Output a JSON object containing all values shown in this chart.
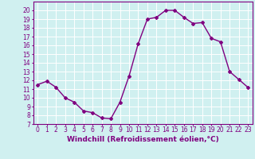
{
  "x": [
    0,
    1,
    2,
    3,
    4,
    5,
    6,
    7,
    8,
    9,
    10,
    11,
    12,
    13,
    14,
    15,
    16,
    17,
    18,
    19,
    20,
    21,
    22,
    23
  ],
  "y": [
    11.5,
    11.9,
    11.2,
    10.0,
    9.5,
    8.5,
    8.3,
    7.7,
    7.6,
    9.5,
    12.5,
    16.2,
    19.0,
    19.2,
    20.0,
    20.0,
    19.2,
    18.5,
    18.6,
    16.8,
    16.4,
    13.0,
    12.1,
    11.2
  ],
  "line_color": "#800080",
  "marker": "D",
  "marker_size": 2.0,
  "bg_color": "#d0f0f0",
  "grid_color": "#ffffff",
  "xlabel": "Windchill (Refroidissement éolien,°C)",
  "tick_color": "#800080",
  "ylim": [
    7,
    21
  ],
  "xlim": [
    -0.5,
    23.5
  ],
  "yticks": [
    7,
    8,
    9,
    10,
    11,
    12,
    13,
    14,
    15,
    16,
    17,
    18,
    19,
    20
  ],
  "xticks": [
    0,
    1,
    2,
    3,
    4,
    5,
    6,
    7,
    8,
    9,
    10,
    11,
    12,
    13,
    14,
    15,
    16,
    17,
    18,
    19,
    20,
    21,
    22,
    23
  ],
  "spine_color": "#800080",
  "line_width": 1.0,
  "tick_fontsize": 5.5,
  "xlabel_fontsize": 6.5
}
